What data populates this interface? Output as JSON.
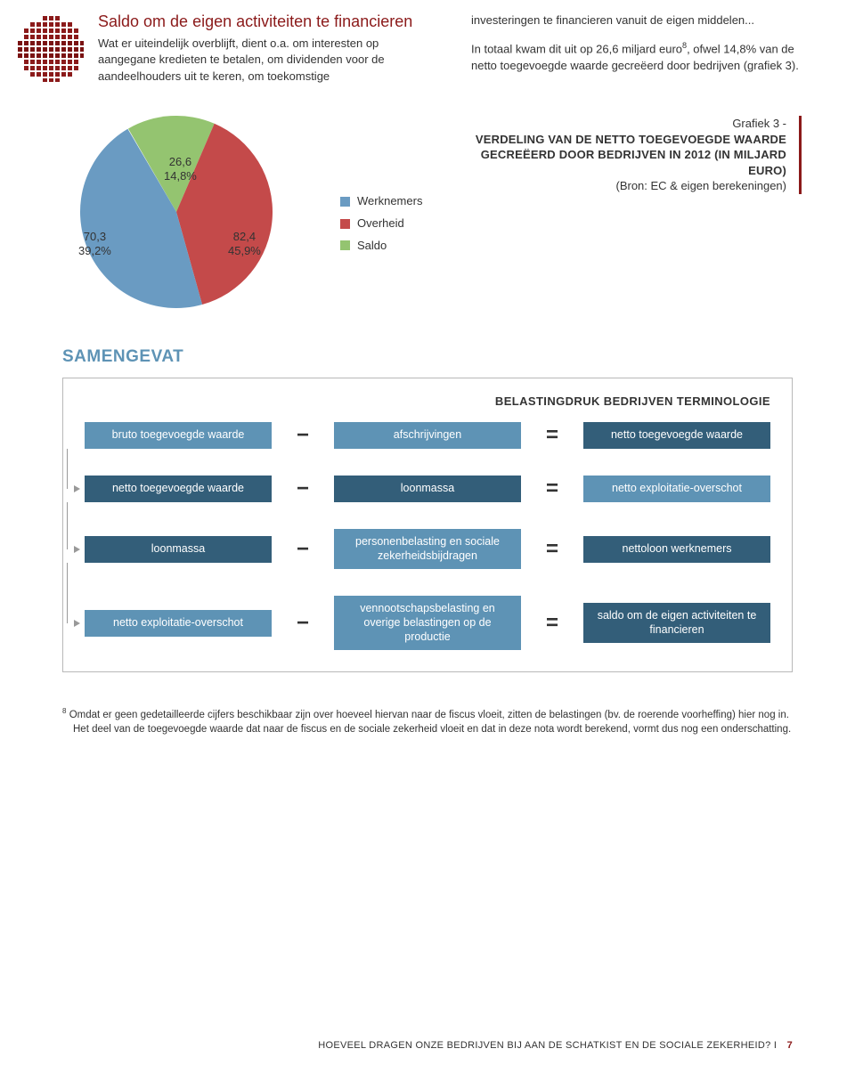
{
  "colors": {
    "brand_red": "#8b1a1a",
    "steel_blue": "#5e93b5",
    "dark_steel": "#335e79",
    "midnight": "#2a3a48",
    "pie_blue": "#6a9bc2",
    "pie_red": "#c44a4a",
    "pie_green": "#94c470"
  },
  "intro": {
    "title": "Saldo om de eigen activiteiten te financieren",
    "col1": "Wat er uiteindelijk overblijft, dient o.a. om interesten op aangegane kredieten te betalen, om dividenden voor de aandeel­houders uit te keren, om toekomstige",
    "col2_a": "investeringen te financieren vanuit de eigen middelen...",
    "col2_b_pre": "In totaal kwam dit uit op 26,6 miljard euro",
    "col2_b_sup": "8",
    "col2_b_post": ", ofwel 14,8% van de netto toegevoegde waarde gecreëerd door bedrijven (grafiek 3)."
  },
  "chart": {
    "type": "pie",
    "title_line1": "Grafiek 3 -",
    "title_line2": "VERDELING VAN DE NETTO TOEGEVOEGDE WAARDE GECREËERD DOOR BEDRIJVEN IN 2012 (IN MILJARD EURO)",
    "title_line3": "(Bron: EC & eigen berekeningen)",
    "radius": 108,
    "slices": [
      {
        "label": "Werknemers",
        "value": 82.4,
        "pct": 45.9,
        "color": "#6a9bc2",
        "disp_value": "82,4",
        "disp_pct": "45,9%"
      },
      {
        "label": "Overheid",
        "value": 70.3,
        "pct": 39.2,
        "color": "#c44a4a",
        "disp_value": "70,3",
        "disp_pct": "39,2%"
      },
      {
        "label": "Saldo",
        "value": 26.6,
        "pct": 14.8,
        "color": "#94c470",
        "disp_value": "26,6",
        "disp_pct": "14,8%"
      }
    ]
  },
  "summary": {
    "heading": "SAMENGEVAT",
    "box_title": "BELASTINGDRUK BEDRIJVEN TERMINOLOGIE",
    "rows": [
      {
        "a": "bruto toegevoegde waarde",
        "b": "afschrijvingen",
        "c": "netto toegevoegde waarde",
        "ca": "#5e93b5",
        "cb": "#5e93b5",
        "cc": "#335e79"
      },
      {
        "a": "netto toegevoegde waarde",
        "b": "loonmassa",
        "c": "netto exploitatie-overschot",
        "ca": "#335e79",
        "cb": "#335e79",
        "cc": "#5e93b5"
      },
      {
        "a": "loonmassa",
        "b": "personenbelasting en sociale zekerheidsbijdragen",
        "c": "nettoloon werknemers",
        "ca": "#335e79",
        "cb": "#5e93b5",
        "cc": "#335e79"
      },
      {
        "a": "netto exploitatie-overschot",
        "b": "vennootschapsbelasting en overige belastingen op de productie",
        "c": "saldo om de eigen activiteiten te financieren",
        "ca": "#5e93b5",
        "cb": "#5e93b5",
        "cc": "#335e79"
      }
    ]
  },
  "footnote": {
    "num": "8",
    "text": "Omdat er geen gedetailleerde cijfers beschikbaar zijn over hoeveel hiervan naar de fiscus vloeit, zitten de belastingen (bv. de roerende voorheffing) hier nog in. Het deel van de toegevoegde waarde dat naar de fiscus en de sociale zekerheid vloeit en dat in deze nota wordt berekend, vormt dus nog een onderschatting."
  },
  "footer": {
    "text": "HOEVEEL DRAGEN ONZE BEDRIJVEN BIJ AAN DE SCHATKIST EN DE SOCIALE ZEKERHEID?",
    "sep": " I ",
    "page": "7"
  }
}
